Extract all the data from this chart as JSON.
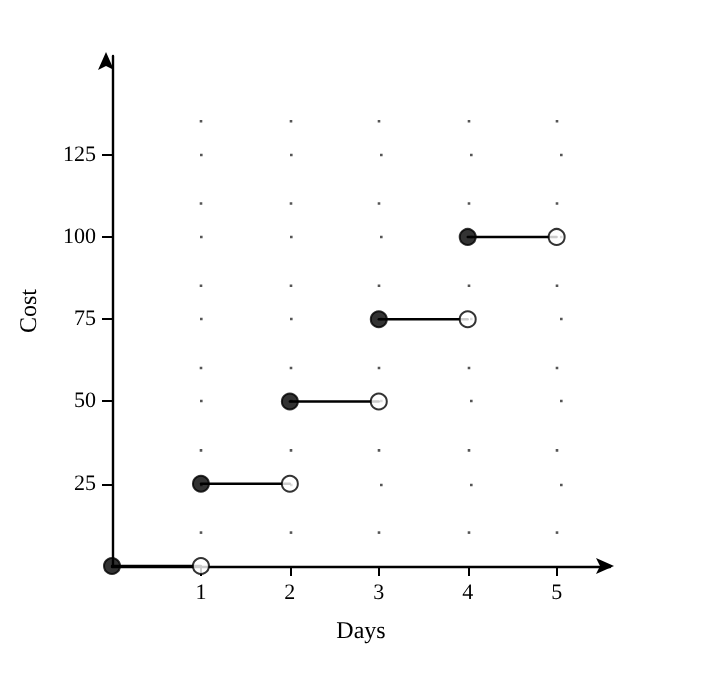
{
  "chart_data": {
    "type": "line",
    "xlabel": "Days",
    "ylabel": "Cost",
    "xlim": [
      0,
      5.6
    ],
    "ylim": [
      0,
      155
    ],
    "xticks": [
      1,
      2,
      3,
      4,
      5
    ],
    "yticks": [
      25,
      50,
      75,
      100,
      125
    ],
    "grid": true,
    "series": [
      {
        "color": "#000000",
        "x": [
          0,
          1
        ],
        "values": [
          0,
          0
        ],
        "marker": "none"
      },
      {
        "color": "#000000",
        "x": [
          1,
          2
        ],
        "values": [
          25,
          25
        ],
        "marker": "none"
      },
      {
        "color": "#000000",
        "x": [
          2,
          3
        ],
        "values": [
          50,
          50
        ],
        "marker": "none"
      },
      {
        "color": "#000000",
        "x": [
          3,
          4
        ],
        "values": [
          75,
          75
        ],
        "marker": "none"
      },
      {
        "color": "#000000",
        "x": [
          4,
          5
        ],
        "values": [
          100,
          100
        ],
        "marker": "none"
      },
      {
        "type": "scatter",
        "color": "#000000",
        "x": [
          0,
          1,
          2,
          3,
          4
        ],
        "values": [
          0,
          25,
          50,
          75,
          100
        ],
        "marker": "circle"
      },
      {
        "type": "scatter",
        "color": "#ffffff",
        "x": [
          1,
          2,
          3,
          4,
          5
        ],
        "values": [
          0,
          25,
          50,
          75,
          100
        ],
        "marker": "circle"
      }
    ]
  }
}
